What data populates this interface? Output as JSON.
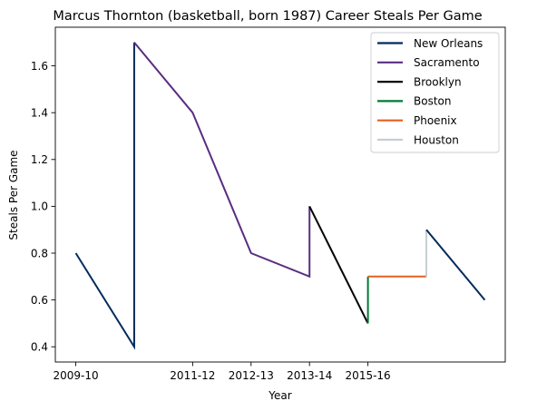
{
  "chart_data": {
    "type": "line",
    "title": "Marcus Thornton (basketball, born 1987) Career Steals Per Game",
    "xlabel": "Year",
    "ylabel": "Steals Per Game",
    "x_tick_labels": [
      "2009-10",
      "2011-12",
      "2012-13",
      "2013-14",
      "2015-16"
    ],
    "x_tick_positions": [
      0,
      2,
      3,
      4,
      5
    ],
    "y_ticks": [
      0.4,
      0.6,
      0.8,
      1.0,
      1.2,
      1.4,
      1.6
    ],
    "y_tick_labels": [
      "0.4",
      "0.6",
      "0.8",
      "1.0",
      "1.2",
      "1.4",
      "1.6"
    ],
    "xlim": [
      -0.35,
      7.35
    ],
    "ylim": [
      0.335,
      1.765
    ],
    "grid": false,
    "legend_position": "top-right",
    "series": [
      {
        "name": "New Orleans",
        "color": "#002B5C",
        "points": [
          [
            0,
            0.8
          ],
          [
            1,
            0.4
          ],
          [
            1,
            1.7
          ]
        ]
      },
      {
        "name": "Sacramento",
        "color": "#5A2D81",
        "points": [
          [
            1,
            1.7
          ],
          [
            2,
            1.4
          ],
          [
            3,
            0.8
          ],
          [
            4,
            0.7
          ],
          [
            4,
            1.0
          ]
        ]
      },
      {
        "name": "Brooklyn",
        "color": "#000000",
        "points": [
          [
            4,
            1.0
          ],
          [
            5,
            0.5
          ]
        ]
      },
      {
        "name": "Boston",
        "color": "#007A33",
        "points": [
          [
            5,
            0.5
          ],
          [
            5,
            0.7
          ]
        ]
      },
      {
        "name": "Phoenix",
        "color": "#E56020",
        "points": [
          [
            5,
            0.7
          ],
          [
            6,
            0.7
          ]
        ]
      },
      {
        "name": "Houston",
        "color": "#C4CED4",
        "points": [
          [
            6,
            0.7
          ],
          [
            6,
            0.9
          ]
        ]
      },
      {
        "name": "New Orleans",
        "color": "#002B5C",
        "legend": false,
        "points": [
          [
            6,
            0.9
          ],
          [
            7,
            0.6
          ]
        ]
      }
    ]
  }
}
